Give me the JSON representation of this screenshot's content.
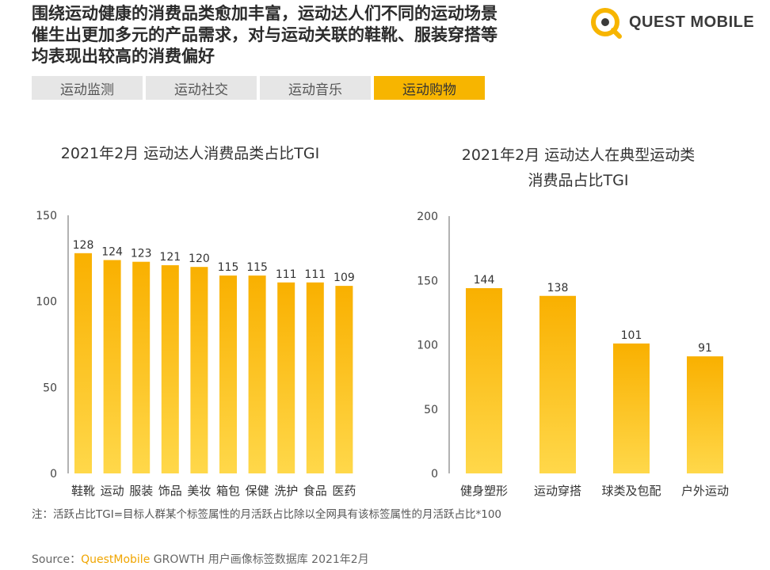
{
  "headline": {
    "line1": "围绕运动健康的消费品类愈加丰富，运动达人们不同的运动场景",
    "line2": "催生出更加多元的产品需求，对与运动关联的鞋靴、服装穿搭等",
    "line3": "均表现出较高的消费偏好"
  },
  "logo": {
    "text": "QUEST MOBILE"
  },
  "tabs": [
    {
      "label": "运动监测",
      "active": false
    },
    {
      "label": "运动社交",
      "active": false
    },
    {
      "label": "运动音乐",
      "active": false
    },
    {
      "label": "运动购物",
      "active": true
    }
  ],
  "colors": {
    "accent": "#f7b500",
    "bar_top": "#f9b000",
    "bar_bottom": "#ffd84a"
  },
  "chart_data": [
    {
      "type": "bar",
      "title": "2021年2月 运动达人消费品类占比TGI",
      "categories": [
        "鞋靴",
        "运动",
        "服装",
        "饰品",
        "美妆",
        "箱包",
        "保健",
        "洗护",
        "食品",
        "医药"
      ],
      "values": [
        128,
        124,
        123,
        121,
        120,
        115,
        115,
        111,
        111,
        109
      ],
      "yticks": [
        "0",
        "50",
        "100",
        "150"
      ],
      "ylim": [
        0,
        150
      ]
    },
    {
      "type": "bar",
      "title_line1": "2021年2月 运动达人在典型运动类",
      "title_line2": "消费品占比TGI",
      "categories": [
        "健身塑形",
        "运动穿搭",
        "球类及包配",
        "户外运动"
      ],
      "values": [
        144,
        138,
        101,
        91
      ],
      "yticks": [
        "0",
        "50",
        "100",
        "150",
        "200"
      ],
      "ylim": [
        0,
        200
      ]
    }
  ],
  "note": "注：活跃占比TGI=目标人群某个标签属性的月活跃占比除以全网具有该标签属性的月活跃占比*100",
  "source": {
    "prefix": "Source：",
    "brand": "QuestMobile",
    "rest": " GROWTH 用户画像标签数据库 2021年2月"
  }
}
